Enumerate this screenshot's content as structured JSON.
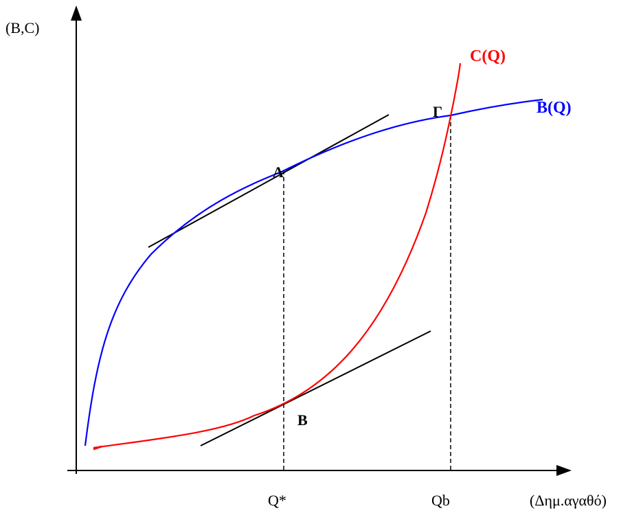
{
  "diagram": {
    "y_axis_label": "(B,C)",
    "x_axis_label": "(Δημ.αγαθό)",
    "tick_q_star": "Q*",
    "tick_qb": "Qb",
    "benefit_curve_label": "B(Q)",
    "cost_curve_label": "C(Q)",
    "point_a_label": "A",
    "point_b_label": "B",
    "point_gamma_label": "Γ",
    "colors": {
      "benefit": "#0000ff",
      "cost": "#ff0000",
      "axes": "#000000",
      "tangents": "#000000"
    }
  }
}
